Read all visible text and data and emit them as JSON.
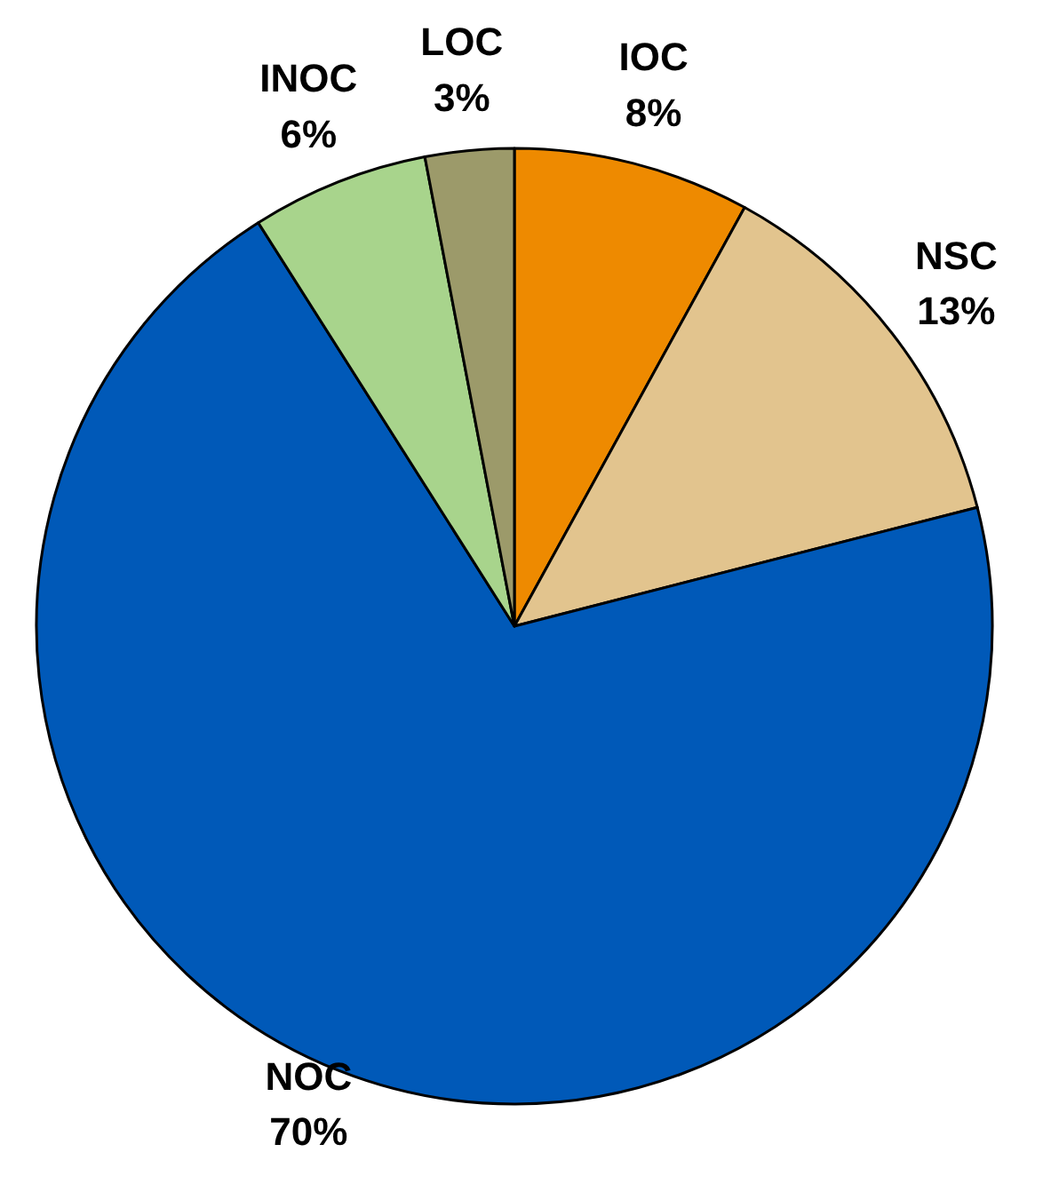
{
  "chart_data": {
    "type": "pie",
    "categories": [
      "IOC",
      "NSC",
      "NOC",
      "INOC",
      "LOC"
    ],
    "values": [
      8,
      13,
      70,
      6,
      3
    ],
    "value_labels": [
      "8%",
      "13%",
      "70%",
      "6%",
      "3%"
    ],
    "colors": [
      "#ee8a00",
      "#e2c48e",
      "#0059b8",
      "#a8d48c",
      "#9c9a6a"
    ]
  }
}
